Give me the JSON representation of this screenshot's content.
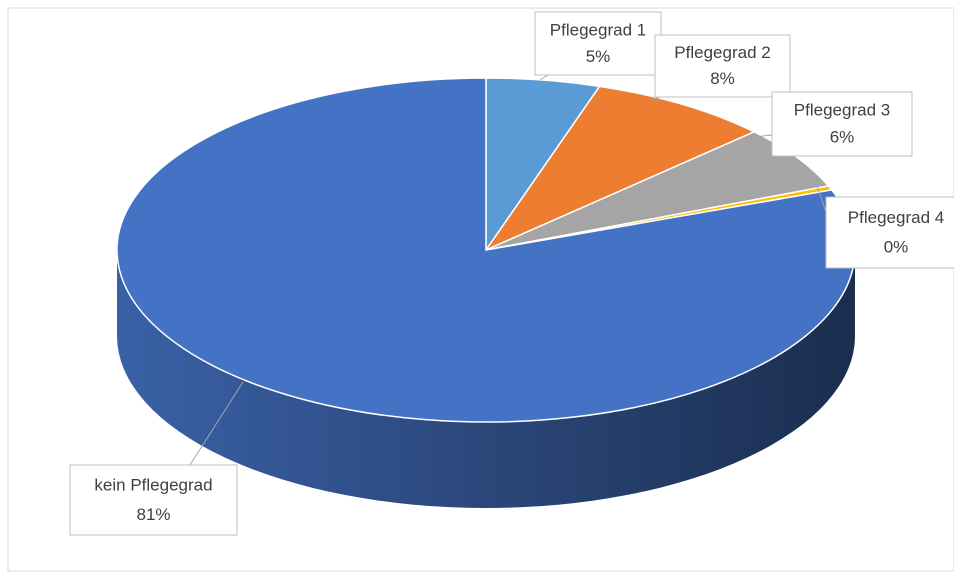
{
  "chart_data": {
    "type": "pie",
    "categories": [
      "Pflegegrad 1",
      "Pflegegrad 2",
      "Pflegegrad 3",
      "Pflegegrad 4",
      "kein Pflegegrad"
    ],
    "values": [
      5,
      8,
      6,
      0.4,
      81
    ],
    "value_labels": [
      "5%",
      "8%",
      "6%",
      "0%",
      "81%"
    ],
    "colors": [
      "#5b9bd5",
      "#ed7d31",
      "#a5a5a5",
      "#ffc000",
      "#4472c4"
    ]
  }
}
